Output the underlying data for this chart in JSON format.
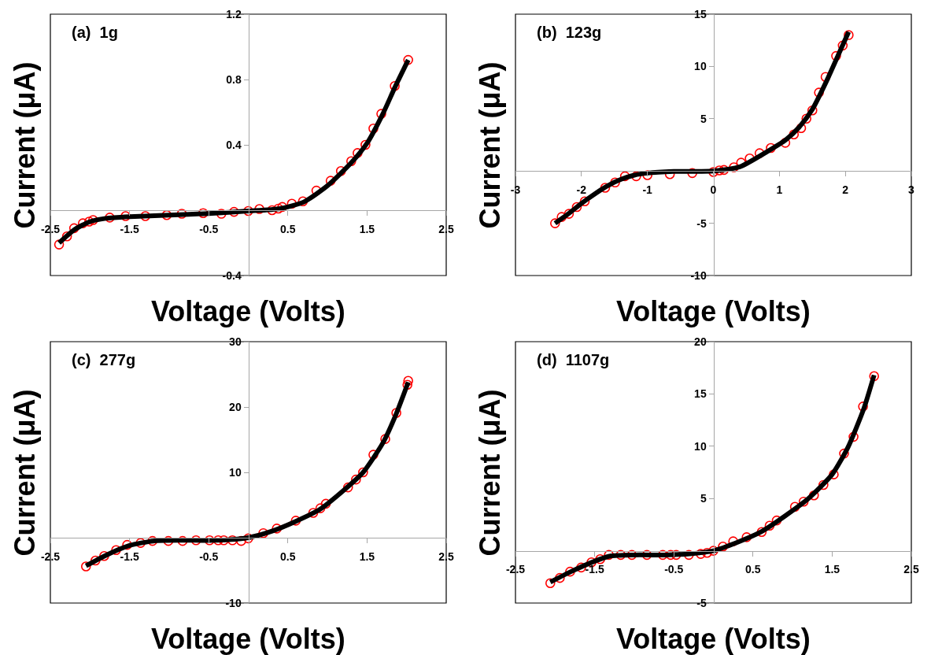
{
  "chart_data": [
    {
      "type": "scatter",
      "annotations": [
        "(a)  1g"
      ],
      "xlabel": "Voltage (Volts)",
      "ylabel": "Current (μA)",
      "xlim": [
        -2.5,
        2.5
      ],
      "ylim": [
        -0.4,
        1.2
      ],
      "xticks": [
        -2.5,
        -1.5,
        -0.5,
        0.5,
        1.5,
        2.5
      ],
      "yticks": [
        -0.4,
        0.4,
        0.8,
        1.2
      ],
      "grid": false,
      "series": [
        {
          "type": "scatter",
          "marker": "circle",
          "color": "#ff0000",
          "x": [
            -2.39,
            -2.29,
            -2.2,
            -2.09,
            -2.01,
            -1.96,
            -1.75,
            -1.55,
            -1.3,
            -1.03,
            -0.84,
            -0.57,
            -0.34,
            -0.18,
            0,
            0.14,
            0.3,
            0.38,
            0.43,
            0.55,
            0.69,
            0.86,
            1.04,
            1.17,
            1.3,
            1.38,
            1.48,
            1.58,
            1.68,
            1.85,
            2.02
          ],
          "values": [
            -0.21,
            -0.16,
            -0.11,
            -0.08,
            -0.07,
            -0.06,
            -0.045,
            -0.036,
            -0.036,
            -0.03,
            -0.022,
            -0.018,
            -0.022,
            -0.01,
            -0.005,
            0.007,
            0,
            0.01,
            0.02,
            0.04,
            0.054,
            0.12,
            0.18,
            0.24,
            0.3,
            0.35,
            0.4,
            0.5,
            0.59,
            0.76,
            0.92
          ]
        },
        {
          "type": "line",
          "marker": "none",
          "line_style": "solid",
          "color": "#000000",
          "x": [
            -2.39,
            -2.2,
            -2.0,
            -1.8,
            -1.5,
            -1.0,
            -0.5,
            0,
            0.4,
            0.7,
            1.0,
            1.3,
            1.5,
            1.7,
            1.85,
            2.02
          ],
          "values": [
            -0.2,
            -0.12,
            -0.07,
            -0.05,
            -0.04,
            -0.03,
            -0.02,
            -0.005,
            0.01,
            0.05,
            0.15,
            0.29,
            0.41,
            0.59,
            0.75,
            0.92
          ]
        }
      ]
    },
    {
      "type": "scatter",
      "annotations": [
        "(b)  123g"
      ],
      "xlabel": "Voltage (Volts)",
      "ylabel": "Current (μA)",
      "xlim": [
        -3,
        3
      ],
      "ylim": [
        -10,
        15
      ],
      "xticks": [
        -3,
        -2,
        -1,
        0,
        1,
        2,
        3
      ],
      "yticks": [
        -10,
        -5,
        5,
        10,
        15
      ],
      "grid": false,
      "series": [
        {
          "type": "scatter",
          "marker": "circle",
          "color": "#ff0000",
          "x": [
            -2.4,
            -2.3,
            -2.19,
            -2.07,
            -1.95,
            -1.64,
            -1.49,
            -1.34,
            -1.17,
            -1.0,
            -0.66,
            -0.32,
            0,
            0.09,
            0.16,
            0.31,
            0.42,
            0.55,
            0.7,
            0.87,
            1.09,
            1.22,
            1.33,
            1.41,
            1.5,
            1.6,
            1.7,
            1.86,
            1.96,
            2.05
          ],
          "values": [
            -5.0,
            -4.4,
            -4.1,
            -3.45,
            -2.9,
            -1.6,
            -1.1,
            -0.5,
            -0.5,
            -0.4,
            -0.3,
            -0.2,
            -0.1,
            0.05,
            0.1,
            0.35,
            0.8,
            1.2,
            1.7,
            2.2,
            2.7,
            3.5,
            4.1,
            5.0,
            5.8,
            7.5,
            9.0,
            11.0,
            12.0,
            13.0
          ]
        },
        {
          "type": "line",
          "marker": "none",
          "line_style": "solid",
          "color": "#000000",
          "x": [
            -2.4,
            -2.2,
            -2.0,
            -1.8,
            -1.6,
            -1.4,
            -1.2,
            -1.0,
            -0.6,
            0,
            0.4,
            0.8,
            1.1,
            1.3,
            1.5,
            1.7,
            1.9,
            2.05
          ],
          "values": [
            -5.0,
            -4.1,
            -3.1,
            -2.2,
            -1.4,
            -0.8,
            -0.4,
            -0.2,
            -0.05,
            0,
            0.4,
            1.8,
            3.0,
            4.2,
            5.9,
            8.4,
            11.2,
            13.3
          ]
        }
      ]
    },
    {
      "type": "scatter",
      "annotations": [
        "(c)  277g"
      ],
      "xlabel": "Voltage (Volts)",
      "ylabel": "Current (μA)",
      "xlim": [
        -2.5,
        2.5
      ],
      "ylim": [
        -10,
        30
      ],
      "xticks": [
        -2.5,
        -1.5,
        -0.5,
        0.5,
        1.5,
        2.5
      ],
      "yticks": [
        -10,
        10,
        20,
        30
      ],
      "grid": false,
      "series": [
        {
          "type": "scatter",
          "marker": "circle",
          "color": "#ff0000",
          "x": [
            -2.05,
            -1.93,
            -1.82,
            -1.67,
            -1.53,
            -1.36,
            -1.21,
            -1.01,
            -0.83,
            -0.66,
            -0.49,
            -0.38,
            -0.31,
            -0.2,
            -0.09,
            0,
            0.19,
            0.36,
            0.6,
            0.82,
            0.91,
            0.98,
            1.26,
            1.36,
            1.45,
            1.58,
            1.73,
            1.87,
            2.01,
            2.02
          ],
          "values": [
            -4.4,
            -3.5,
            -2.8,
            -1.9,
            -1.1,
            -0.8,
            -0.5,
            -0.5,
            -0.5,
            -0.4,
            -0.4,
            -0.4,
            -0.4,
            -0.4,
            -0.5,
            -0.1,
            0.7,
            1.4,
            2.6,
            3.8,
            4.5,
            5.2,
            7.7,
            8.9,
            10.0,
            12.7,
            15.1,
            19.1,
            23.4,
            24.0
          ]
        },
        {
          "type": "line",
          "marker": "none",
          "line_style": "solid",
          "color": "#000000",
          "x": [
            -2.05,
            -1.8,
            -1.5,
            -1.2,
            -0.8,
            -0.4,
            0,
            0.3,
            0.6,
            0.9,
            1.2,
            1.45,
            1.7,
            1.87,
            2.02
          ],
          "values": [
            -4.3,
            -2.7,
            -1.2,
            -0.5,
            -0.4,
            -0.4,
            0,
            1.0,
            2.5,
            4.3,
            7.2,
            10.0,
            14.5,
            19.0,
            23.8
          ]
        }
      ]
    },
    {
      "type": "scatter",
      "annotations": [
        "(d)  1107g"
      ],
      "xlabel": "Voltage (Volts)",
      "ylabel": "Current (μA)",
      "xlim": [
        -2.5,
        2.5
      ],
      "ylim": [
        -5,
        20
      ],
      "xticks": [
        -2.5,
        -1.5,
        -0.5,
        0.5,
        1.5,
        2.5
      ],
      "yticks": [
        -5,
        5,
        10,
        15,
        20
      ],
      "grid": false,
      "series": [
        {
          "type": "scatter",
          "marker": "circle",
          "color": "#ff0000",
          "x": [
            -2.06,
            -1.94,
            -1.81,
            -1.67,
            -1.54,
            -1.43,
            -1.32,
            -1.17,
            -1.03,
            -0.84,
            -0.64,
            -0.54,
            -0.47,
            -0.31,
            -0.16,
            -0.08,
            0,
            0.12,
            0.25,
            0.42,
            0.61,
            0.71,
            0.8,
            1.03,
            1.14,
            1.27,
            1.39,
            1.52,
            1.65,
            1.77,
            1.89,
            2.03
          ],
          "values": [
            -3.1,
            -2.6,
            -2.0,
            -1.6,
            -1.1,
            -0.8,
            -0.4,
            -0.4,
            -0.4,
            -0.4,
            -0.4,
            -0.4,
            -0.4,
            -0.4,
            -0.3,
            -0.2,
            0,
            0.4,
            0.9,
            1.3,
            1.8,
            2.4,
            2.9,
            4.2,
            4.7,
            5.3,
            6.3,
            7.3,
            9.3,
            10.9,
            13.8,
            16.7
          ]
        },
        {
          "type": "line",
          "marker": "none",
          "line_style": "solid",
          "color": "#000000",
          "x": [
            -2.06,
            -1.8,
            -1.5,
            -1.3,
            -1.0,
            -0.6,
            -0.3,
            0,
            0.3,
            0.6,
            0.9,
            1.2,
            1.5,
            1.7,
            1.9,
            2.03
          ],
          "values": [
            -3.0,
            -2.0,
            -1.0,
            -0.5,
            -0.4,
            -0.4,
            -0.3,
            0,
            0.8,
            1.8,
            3.3,
            5.0,
            7.3,
            9.9,
            13.6,
            16.8
          ]
        }
      ]
    }
  ]
}
